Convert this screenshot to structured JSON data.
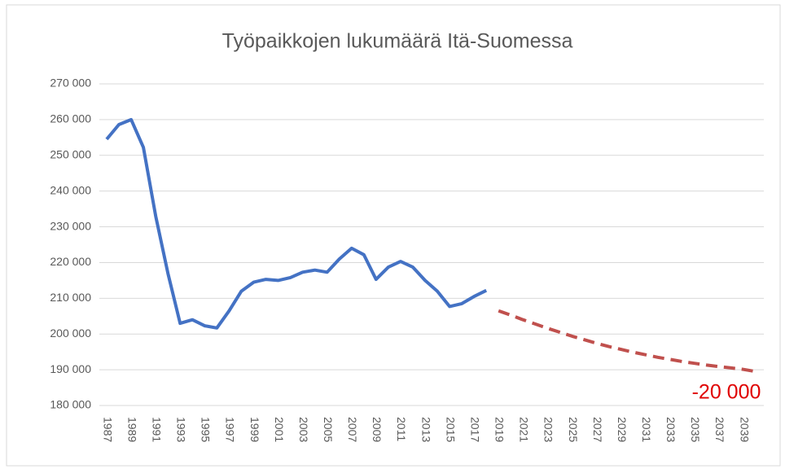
{
  "chart_data": {
    "type": "line",
    "title": "Työpaikkojen lukumäärä Itä-Suomessa",
    "categories": [
      "1987",
      null,
      "1989",
      null,
      "1991",
      null,
      "1993",
      null,
      "1995",
      null,
      "1997",
      null,
      "1999",
      null,
      "2001",
      null,
      "2003",
      null,
      "2005",
      null,
      "2007",
      null,
      "2009",
      null,
      "2011",
      null,
      "2013",
      null,
      "2015",
      null,
      "2017",
      null,
      "2019",
      null,
      "2021",
      null,
      "2023",
      null,
      "2025",
      null,
      "2027",
      null,
      "2029",
      null,
      "2031",
      null,
      "2033",
      null,
      "2035",
      null,
      "2037",
      null,
      "2039",
      null
    ],
    "series": [
      {
        "color": "#4472c4",
        "dashed": false,
        "values": [
          254500,
          258600,
          260000,
          252200,
          233000,
          217000,
          203000,
          204000,
          202300,
          201700,
          206500,
          212000,
          214500,
          215300,
          215000,
          215800,
          217300,
          217900,
          217300,
          221000,
          224000,
          222200,
          215300,
          218700,
          220300,
          218700,
          215000,
          212000,
          207700,
          208500,
          210500,
          212200,
          null,
          null,
          null,
          null,
          null,
          null,
          null,
          null,
          null,
          null,
          null,
          null,
          null,
          null,
          null,
          null,
          null,
          null,
          null,
          null,
          null,
          null
        ]
      },
      {
        "color": "#c0504d",
        "dashed": true,
        "values": [
          null,
          null,
          null,
          null,
          null,
          null,
          null,
          null,
          null,
          null,
          null,
          null,
          null,
          null,
          null,
          null,
          null,
          null,
          null,
          null,
          null,
          null,
          null,
          null,
          null,
          null,
          null,
          null,
          null,
          null,
          null,
          null,
          206500,
          205300,
          204000,
          202800,
          201600,
          200500,
          199400,
          198400,
          197400,
          196500,
          195700,
          194900,
          194200,
          193500,
          192900,
          192300,
          191800,
          191300,
          190900,
          190500,
          190100,
          189500
        ]
      }
    ],
    "annotation": "-20 000",
    "ylim": [
      180000,
      270000
    ],
    "yticks": [
      {
        "value": 180000,
        "label": "180 000"
      },
      {
        "value": 190000,
        "label": "190 000"
      },
      {
        "value": 200000,
        "label": "200 000"
      },
      {
        "value": 210000,
        "label": "210 000"
      },
      {
        "value": 220000,
        "label": "220 000"
      },
      {
        "value": 230000,
        "label": "230 000"
      },
      {
        "value": 240000,
        "label": "240 000"
      },
      {
        "value": 250000,
        "label": "250 000"
      },
      {
        "value": 260000,
        "label": "260 000"
      },
      {
        "value": 270000,
        "label": "270 000"
      }
    ],
    "grid": true
  }
}
